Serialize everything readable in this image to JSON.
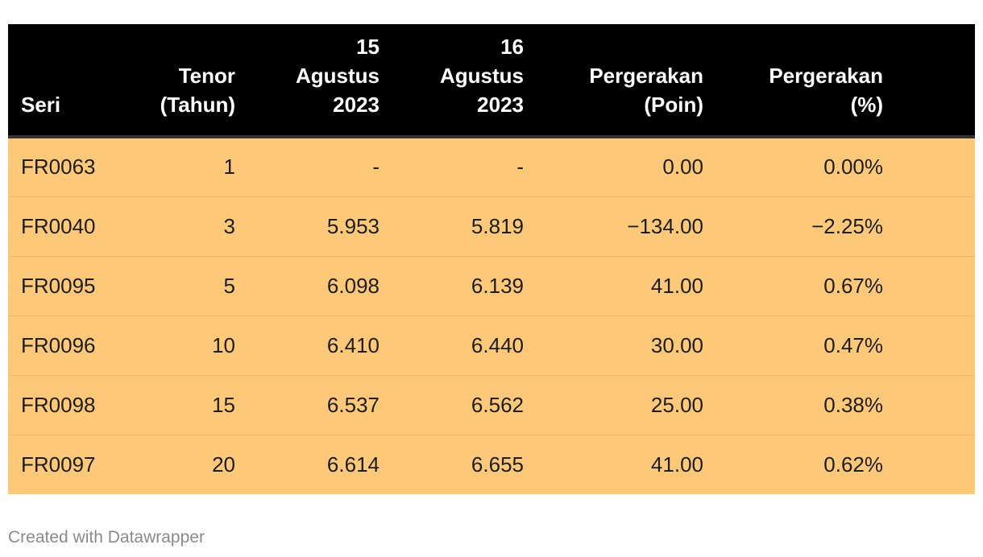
{
  "chart_data": {
    "type": "table",
    "columns": [
      "Seri",
      "Tenor (Tahun)",
      "15 Agustus 2023",
      "16 Agustus 2023",
      "Pergerakan (Poin)",
      "Pergerakan (%)"
    ],
    "header_lines": [
      "Seri",
      "Tenor\n(Tahun)",
      "15\nAgustus\n2023",
      "16\nAgustus\n2023",
      "Pergerakan\n(Poin)",
      "Pergerakan\n(%)"
    ],
    "rows": [
      [
        "FR0063",
        "1",
        "-",
        "-",
        "0.00",
        "0.00%"
      ],
      [
        "FR0040",
        "3",
        "5.953",
        "5.819",
        "−134.00",
        "−2.25%"
      ],
      [
        "FR0095",
        "5",
        "6.098",
        "6.139",
        "41.00",
        "0.67%"
      ],
      [
        "FR0096",
        "10",
        "6.410",
        "6.440",
        "30.00",
        "0.47%"
      ],
      [
        "FR0098",
        "15",
        "6.537",
        "6.562",
        "25.00",
        "0.38%"
      ],
      [
        "FR0097",
        "20",
        "6.614",
        "6.655",
        "41.00",
        "0.62%"
      ]
    ],
    "colors": {
      "header_bg": "#000000",
      "row_bg": "#fdc978"
    }
  },
  "footer": {
    "credit": "Created with Datawrapper"
  }
}
